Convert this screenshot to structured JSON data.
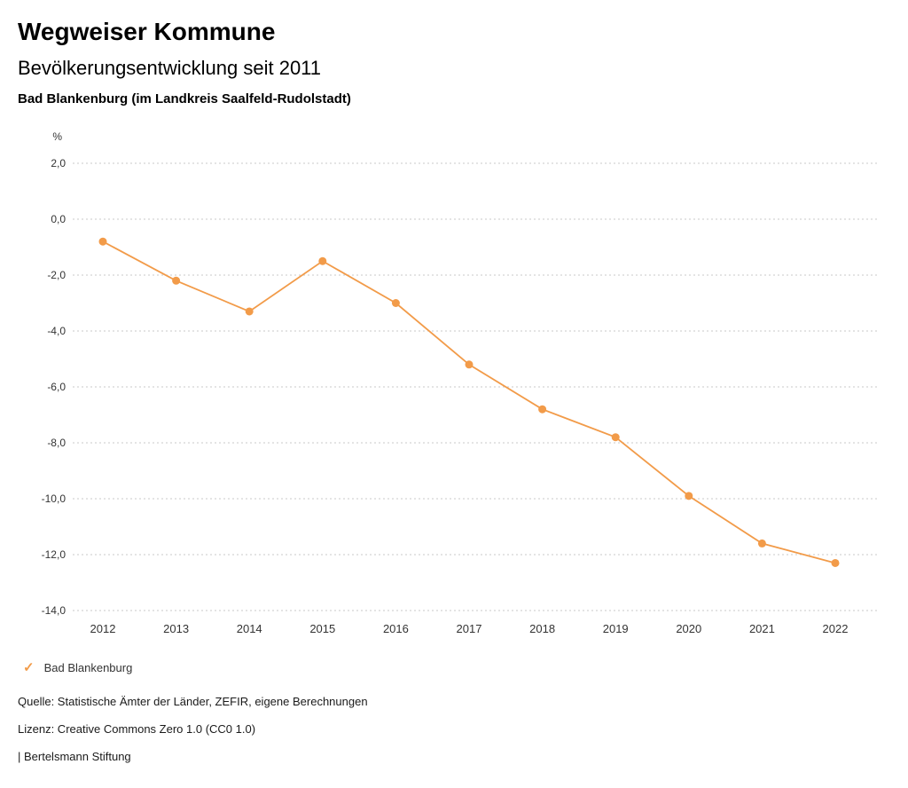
{
  "header": {
    "title": "Wegweiser Kommune"
  },
  "chart_data": {
    "type": "line",
    "title": "Bevölkerungsentwicklung seit 2011",
    "region_label": "Bad Blankenburg (im Landkreis Saalfeld-Rudolstadt)",
    "unit_label": "%",
    "x": [
      "2012",
      "2013",
      "2014",
      "2015",
      "2016",
      "2017",
      "2018",
      "2019",
      "2020",
      "2021",
      "2022"
    ],
    "series": [
      {
        "name": "Bad Blankenburg",
        "color": "#f29b49",
        "values": [
          -0.8,
          -2.2,
          -3.3,
          -1.5,
          -3.0,
          -5.2,
          -6.8,
          -7.8,
          -9.9,
          -11.6,
          -12.3
        ]
      }
    ],
    "ylim": [
      -14,
      2
    ],
    "yticks": [
      2,
      0,
      -2,
      -4,
      -6,
      -8,
      -10,
      -12,
      -14
    ],
    "ytick_labels": [
      "2,0",
      "0,0",
      "-2,0",
      "-4,0",
      "-6,0",
      "-8,0",
      "-10,0",
      "-12,0",
      "-14,0"
    ],
    "grid": true,
    "grid_style": "dotted",
    "legend_position": "bottom-left"
  },
  "legend": {
    "check_icon": "✓"
  },
  "footer": {
    "source": "Quelle: Statistische Ämter der Länder, ZEFIR, eigene Berechnungen",
    "license": "Lizenz: Creative Commons Zero 1.0 (CC0 1.0)",
    "attribution": "| Bertelsmann Stiftung"
  }
}
